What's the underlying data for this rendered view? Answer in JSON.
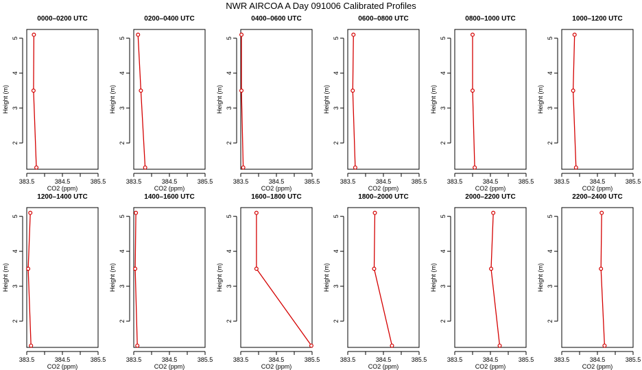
{
  "title": "NWR AIRCOA A  Day 091006  Calibrated Profiles",
  "colors": {
    "series": "#d40000",
    "axis": "#000000"
  },
  "chart_data": [
    {
      "type": "line",
      "title": "0000–0200 UTC",
      "xlabel": "CO2 (ppm)",
      "ylabel": "Height (m)",
      "xlim": [
        383.5,
        385.5
      ],
      "ylim": [
        1.25,
        5.25
      ],
      "xticks": [
        "383.5",
        "384.5",
        "385.5"
      ],
      "yticks": [
        "2",
        "3",
        "4",
        "5"
      ],
      "x": [
        383.7,
        383.69,
        383.77
      ],
      "y": [
        5.1,
        3.5,
        1.3
      ]
    },
    {
      "type": "line",
      "title": "0200–0400 UTC",
      "xlabel": "CO2 (ppm)",
      "ylabel": "Height (m)",
      "xlim": [
        383.5,
        385.5
      ],
      "ylim": [
        1.25,
        5.25
      ],
      "xticks": [
        "383.5",
        "384.5",
        "385.5"
      ],
      "yticks": [
        "2",
        "3",
        "4",
        "5"
      ],
      "x": [
        383.62,
        383.7,
        383.82
      ],
      "y": [
        5.1,
        3.5,
        1.3
      ]
    },
    {
      "type": "line",
      "title": "0400–0600 UTC",
      "xlabel": "CO2 (ppm)",
      "ylabel": "Height (m)",
      "xlim": [
        383.5,
        385.5
      ],
      "ylim": [
        1.25,
        5.25
      ],
      "xticks": [
        "383.5",
        "384.5",
        "385.5"
      ],
      "yticks": [
        "2",
        "3",
        "4",
        "5"
      ],
      "x": [
        383.52,
        383.52,
        383.57
      ],
      "y": [
        5.1,
        3.5,
        1.3
      ]
    },
    {
      "type": "line",
      "title": "0600–0800 UTC",
      "xlabel": "CO2 (ppm)",
      "ylabel": "Height (m)",
      "xlim": [
        383.5,
        385.5
      ],
      "ylim": [
        1.25,
        5.25
      ],
      "xticks": [
        "383.5",
        "384.5",
        "385.5"
      ],
      "yticks": [
        "2",
        "3",
        "4",
        "5"
      ],
      "x": [
        383.66,
        383.64,
        383.71
      ],
      "y": [
        5.1,
        3.5,
        1.3
      ]
    },
    {
      "type": "line",
      "title": "0800–1000 UTC",
      "xlabel": "CO2 (ppm)",
      "ylabel": "Height (m)",
      "xlim": [
        383.5,
        385.5
      ],
      "ylim": [
        1.25,
        5.25
      ],
      "xticks": [
        "383.5",
        "384.5",
        "385.5"
      ],
      "yticks": [
        "2",
        "3",
        "4",
        "5"
      ],
      "x": [
        384.0,
        384.0,
        384.06
      ],
      "y": [
        5.1,
        3.5,
        1.3
      ]
    },
    {
      "type": "line",
      "title": "1000–1200 UTC",
      "xlabel": "CO2 (ppm)",
      "ylabel": "Height (m)",
      "xlim": [
        383.5,
        385.5
      ],
      "ylim": [
        1.25,
        5.25
      ],
      "xticks": [
        "383.5",
        "384.5",
        "385.5"
      ],
      "yticks": [
        "2",
        "3",
        "4",
        "5"
      ],
      "x": [
        383.86,
        383.82,
        383.9
      ],
      "y": [
        5.1,
        3.5,
        1.3
      ]
    },
    {
      "type": "line",
      "title": "1200–1400 UTC",
      "xlabel": "CO2 (ppm)",
      "ylabel": "Height (m)",
      "xlim": [
        383.5,
        385.5
      ],
      "ylim": [
        1.25,
        5.25
      ],
      "xticks": [
        "383.5",
        "384.5",
        "385.5"
      ],
      "yticks": [
        "2",
        "3",
        "4",
        "5"
      ],
      "x": [
        383.6,
        383.54,
        383.62
      ],
      "y": [
        5.1,
        3.5,
        1.3
      ]
    },
    {
      "type": "line",
      "title": "1400–1600 UTC",
      "xlabel": "CO2 (ppm)",
      "ylabel": "Height (m)",
      "xlim": [
        383.5,
        385.5
      ],
      "ylim": [
        1.25,
        5.25
      ],
      "xticks": [
        "383.5",
        "384.5",
        "385.5"
      ],
      "yticks": [
        "2",
        "3",
        "4",
        "5"
      ],
      "x": [
        383.56,
        383.54,
        383.6
      ],
      "y": [
        5.1,
        3.5,
        1.3
      ]
    },
    {
      "type": "line",
      "title": "1600–1800 UTC",
      "xlabel": "CO2 (ppm)",
      "ylabel": "Height (m)",
      "xlim": [
        383.5,
        385.5
      ],
      "ylim": [
        1.25,
        5.25
      ],
      "xticks": [
        "383.5",
        "384.5",
        "385.5"
      ],
      "yticks": [
        "2",
        "3",
        "4",
        "5"
      ],
      "x": [
        383.94,
        383.94,
        385.48
      ],
      "y": [
        5.1,
        3.5,
        1.3
      ]
    },
    {
      "type": "line",
      "title": "1800–2000 UTC",
      "xlabel": "CO2 (ppm)",
      "ylabel": "Height (m)",
      "xlim": [
        383.5,
        385.5
      ],
      "ylim": [
        1.25,
        5.25
      ],
      "xticks": [
        "383.5",
        "384.5",
        "385.5"
      ],
      "yticks": [
        "2",
        "3",
        "4",
        "5"
      ],
      "x": [
        384.26,
        384.24,
        384.74
      ],
      "y": [
        5.1,
        3.5,
        1.3
      ]
    },
    {
      "type": "line",
      "title": "2000–2200 UTC",
      "xlabel": "CO2 (ppm)",
      "ylabel": "Height (m)",
      "xlim": [
        383.5,
        385.5
      ],
      "ylim": [
        1.25,
        5.25
      ],
      "xticks": [
        "383.5",
        "384.5",
        "385.5"
      ],
      "yticks": [
        "2",
        "3",
        "4",
        "5"
      ],
      "x": [
        384.58,
        384.52,
        384.76
      ],
      "y": [
        5.1,
        3.5,
        1.3
      ]
    },
    {
      "type": "line",
      "title": "2200–2400 UTC",
      "xlabel": "CO2 (ppm)",
      "ylabel": "Height (m)",
      "xlim": [
        383.5,
        385.5
      ],
      "ylim": [
        1.25,
        5.25
      ],
      "xticks": [
        "383.5",
        "384.5",
        "385.5"
      ],
      "yticks": [
        "2",
        "3",
        "4",
        "5"
      ],
      "x": [
        384.62,
        384.6,
        384.7
      ],
      "y": [
        5.1,
        3.5,
        1.3
      ]
    }
  ]
}
